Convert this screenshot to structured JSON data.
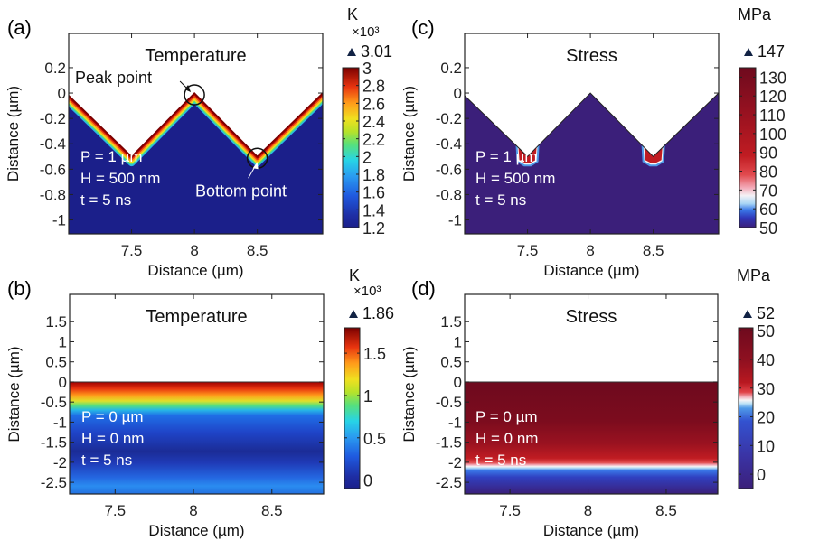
{
  "chart_data": [
    {
      "id": "a",
      "type": "heatmap",
      "panel_label": "(a)",
      "title": "Temperature",
      "xlabel": "Distance (µm)",
      "ylabel": "Distance (µm)",
      "xlim": [
        7.0,
        9.02
      ],
      "ylim": [
        -1.11,
        0.47
      ],
      "xticks": [
        {
          "v": 7.5,
          "label": "7.5"
        },
        {
          "v": 8,
          "label": "8"
        },
        {
          "v": 8.5,
          "label": "8.5"
        }
      ],
      "yticks": [
        {
          "v": 0.2,
          "label": "0.2"
        },
        {
          "v": 0,
          "label": "0"
        },
        {
          "v": -0.2,
          "label": "-0.2"
        },
        {
          "v": -0.4,
          "label": "-0.4"
        },
        {
          "v": -0.6,
          "label": "-0.6"
        },
        {
          "v": -0.8,
          "label": "-0.8"
        },
        {
          "v": -1,
          "label": "-1"
        }
      ],
      "surface": "triangular",
      "surface_points": [
        [
          7.0,
          -0.02
        ],
        [
          7.5,
          -0.5
        ],
        [
          8.0,
          0.0
        ],
        [
          8.5,
          -0.5
        ],
        [
          9.02,
          0.0
        ]
      ],
      "field": "surface_band",
      "annotations": [
        {
          "text": "P = 1 µm"
        },
        {
          "text": "H = 500 nm"
        },
        {
          "text": "t = 5 ns"
        }
      ],
      "callouts": [
        {
          "text": "Peak point",
          "x": 8.0,
          "y": 0.0
        },
        {
          "text": "Bottom point",
          "x": 8.5,
          "y": -0.5
        }
      ],
      "colorbar": {
        "unit": "K",
        "multiplier": "×10³",
        "max_marker": "3.01",
        "range": [
          1.2,
          3.0
        ],
        "colormap": "jet",
        "ticks": [
          {
            "v": 3,
            "label": "3"
          },
          {
            "v": 2.8,
            "label": "2.8"
          },
          {
            "v": 2.6,
            "label": "2.6"
          },
          {
            "v": 2.4,
            "label": "2.4"
          },
          {
            "v": 2.2,
            "label": "2.2"
          },
          {
            "v": 2,
            "label": "2"
          },
          {
            "v": 1.8,
            "label": "1.8"
          },
          {
            "v": 1.6,
            "label": "1.6"
          },
          {
            "v": 1.4,
            "label": "1.4"
          },
          {
            "v": 1.2,
            "label": "1.2"
          }
        ]
      }
    },
    {
      "id": "c",
      "type": "heatmap",
      "panel_label": "(c)",
      "title": "Stress",
      "xlabel": "Distance (µm)",
      "ylabel": "Distance (µm)",
      "xlim": [
        7.0,
        9.02
      ],
      "ylim": [
        -1.11,
        0.47
      ],
      "xticks": [
        {
          "v": 7.5,
          "label": "7.5"
        },
        {
          "v": 8,
          "label": "8"
        },
        {
          "v": 8.5,
          "label": "8.5"
        }
      ],
      "yticks": [
        {
          "v": 0.2,
          "label": "0.2"
        },
        {
          "v": 0,
          "label": "0"
        },
        {
          "v": -0.2,
          "label": "-0.2"
        },
        {
          "v": -0.4,
          "label": "-0.4"
        },
        {
          "v": -0.6,
          "label": "-0.6"
        },
        {
          "v": -0.8,
          "label": "-0.8"
        },
        {
          "v": -1,
          "label": "-1"
        }
      ],
      "surface": "triangular",
      "surface_points": [
        [
          7.0,
          -0.02
        ],
        [
          7.5,
          -0.5
        ],
        [
          8.0,
          0.0
        ],
        [
          8.5,
          -0.5
        ],
        [
          9.02,
          0.0
        ]
      ],
      "field": "stress_hotspots",
      "hotspots": [
        [
          7.5,
          -0.5
        ],
        [
          8.5,
          -0.5
        ]
      ],
      "annotations": [
        {
          "text": "P = 1 µm"
        },
        {
          "text": "H = 500 nm"
        },
        {
          "text": "t = 5 ns"
        }
      ],
      "colorbar": {
        "unit": "MPa",
        "multiplier": "",
        "max_marker": "147",
        "range": [
          50,
          135
        ],
        "colormap": "diverging",
        "ticks": [
          {
            "v": 130,
            "label": "130"
          },
          {
            "v": 120,
            "label": "120"
          },
          {
            "v": 110,
            "label": "110"
          },
          {
            "v": 100,
            "label": "100"
          },
          {
            "v": 90,
            "label": "90"
          },
          {
            "v": 80,
            "label": "80"
          },
          {
            "v": 70,
            "label": "70"
          },
          {
            "v": 60,
            "label": "60"
          },
          {
            "v": 50,
            "label": "50"
          }
        ]
      }
    },
    {
      "id": "b",
      "type": "heatmap",
      "panel_label": "(b)",
      "title": "Temperature",
      "xlabel": "Distance (µm)",
      "ylabel": "Distance (µm)",
      "xlim": [
        7.21,
        8.83
      ],
      "ylim": [
        -2.79,
        2.18
      ],
      "xticks": [
        {
          "v": 7.5,
          "label": "7.5"
        },
        {
          "v": 8,
          "label": "8"
        },
        {
          "v": 8.5,
          "label": "8.5"
        }
      ],
      "yticks": [
        {
          "v": 1.5,
          "label": "1.5"
        },
        {
          "v": 1,
          "label": "1"
        },
        {
          "v": 0.5,
          "label": "0.5"
        },
        {
          "v": 0,
          "label": "0"
        },
        {
          "v": -0.5,
          "label": "-0.5"
        },
        {
          "v": -1,
          "label": "-1"
        },
        {
          "v": -1.5,
          "label": "-1.5"
        },
        {
          "v": -2,
          "label": "-2"
        },
        {
          "v": -2.5,
          "label": "-2.5"
        }
      ],
      "surface": "flat",
      "surface_points": [
        [
          7.21,
          0
        ],
        [
          8.83,
          0
        ]
      ],
      "field": "depth_gradient_temperature",
      "annotations": [
        {
          "text": "P = 0 µm"
        },
        {
          "text": "H = 0 nm"
        },
        {
          "text": "t = 5 ns"
        }
      ],
      "colorbar": {
        "unit": "K",
        "multiplier": "×10³",
        "max_marker": "1.86",
        "range": [
          -0.1,
          1.8
        ],
        "colormap": "jet",
        "ticks": [
          {
            "v": 1.5,
            "label": "1.5"
          },
          {
            "v": 1,
            "label": "1"
          },
          {
            "v": 0.5,
            "label": "0.5"
          },
          {
            "v": 0,
            "label": "0"
          }
        ]
      }
    },
    {
      "id": "d",
      "type": "heatmap",
      "panel_label": "(d)",
      "title": "Stress",
      "xlabel": "Distance (µm)",
      "ylabel": "Distance (µm)",
      "xlim": [
        7.21,
        8.83
      ],
      "ylim": [
        -2.79,
        2.18
      ],
      "xticks": [
        {
          "v": 7.5,
          "label": "7.5"
        },
        {
          "v": 8,
          "label": "8"
        },
        {
          "v": 8.5,
          "label": "8.5"
        }
      ],
      "yticks": [
        {
          "v": 1.5,
          "label": "1.5"
        },
        {
          "v": 1,
          "label": "1"
        },
        {
          "v": 0.5,
          "label": "0.5"
        },
        {
          "v": 0,
          "label": "0"
        },
        {
          "v": -0.5,
          "label": "-0.5"
        },
        {
          "v": -1,
          "label": "-1"
        },
        {
          "v": -1.5,
          "label": "-1.5"
        },
        {
          "v": -2,
          "label": "-2"
        },
        {
          "v": -2.5,
          "label": "-2.5"
        }
      ],
      "surface": "flat",
      "surface_points": [
        [
          7.21,
          0
        ],
        [
          8.83,
          0
        ]
      ],
      "field": "depth_gradient_stress",
      "annotations": [
        {
          "text": "P = 0 µm"
        },
        {
          "text": "H = 0 nm"
        },
        {
          "text": "t = 5 ns"
        }
      ],
      "colorbar": {
        "unit": "MPa",
        "multiplier": "",
        "max_marker": "52",
        "range": [
          -5,
          51
        ],
        "colormap": "diverging_mid25",
        "ticks": [
          {
            "v": 50,
            "label": "50"
          },
          {
            "v": 40,
            "label": "40"
          },
          {
            "v": 30,
            "label": "30"
          },
          {
            "v": 20,
            "label": "20"
          },
          {
            "v": 10,
            "label": "10"
          },
          {
            "v": 0,
            "label": "0"
          }
        ]
      }
    }
  ],
  "colors": {
    "jet_low": "#1b1f8a",
    "jet_high": "#7a0000",
    "stress_low": "#3b1f7a",
    "stress_high": "#6e0a1e",
    "annotation_text": "#ffffff"
  }
}
